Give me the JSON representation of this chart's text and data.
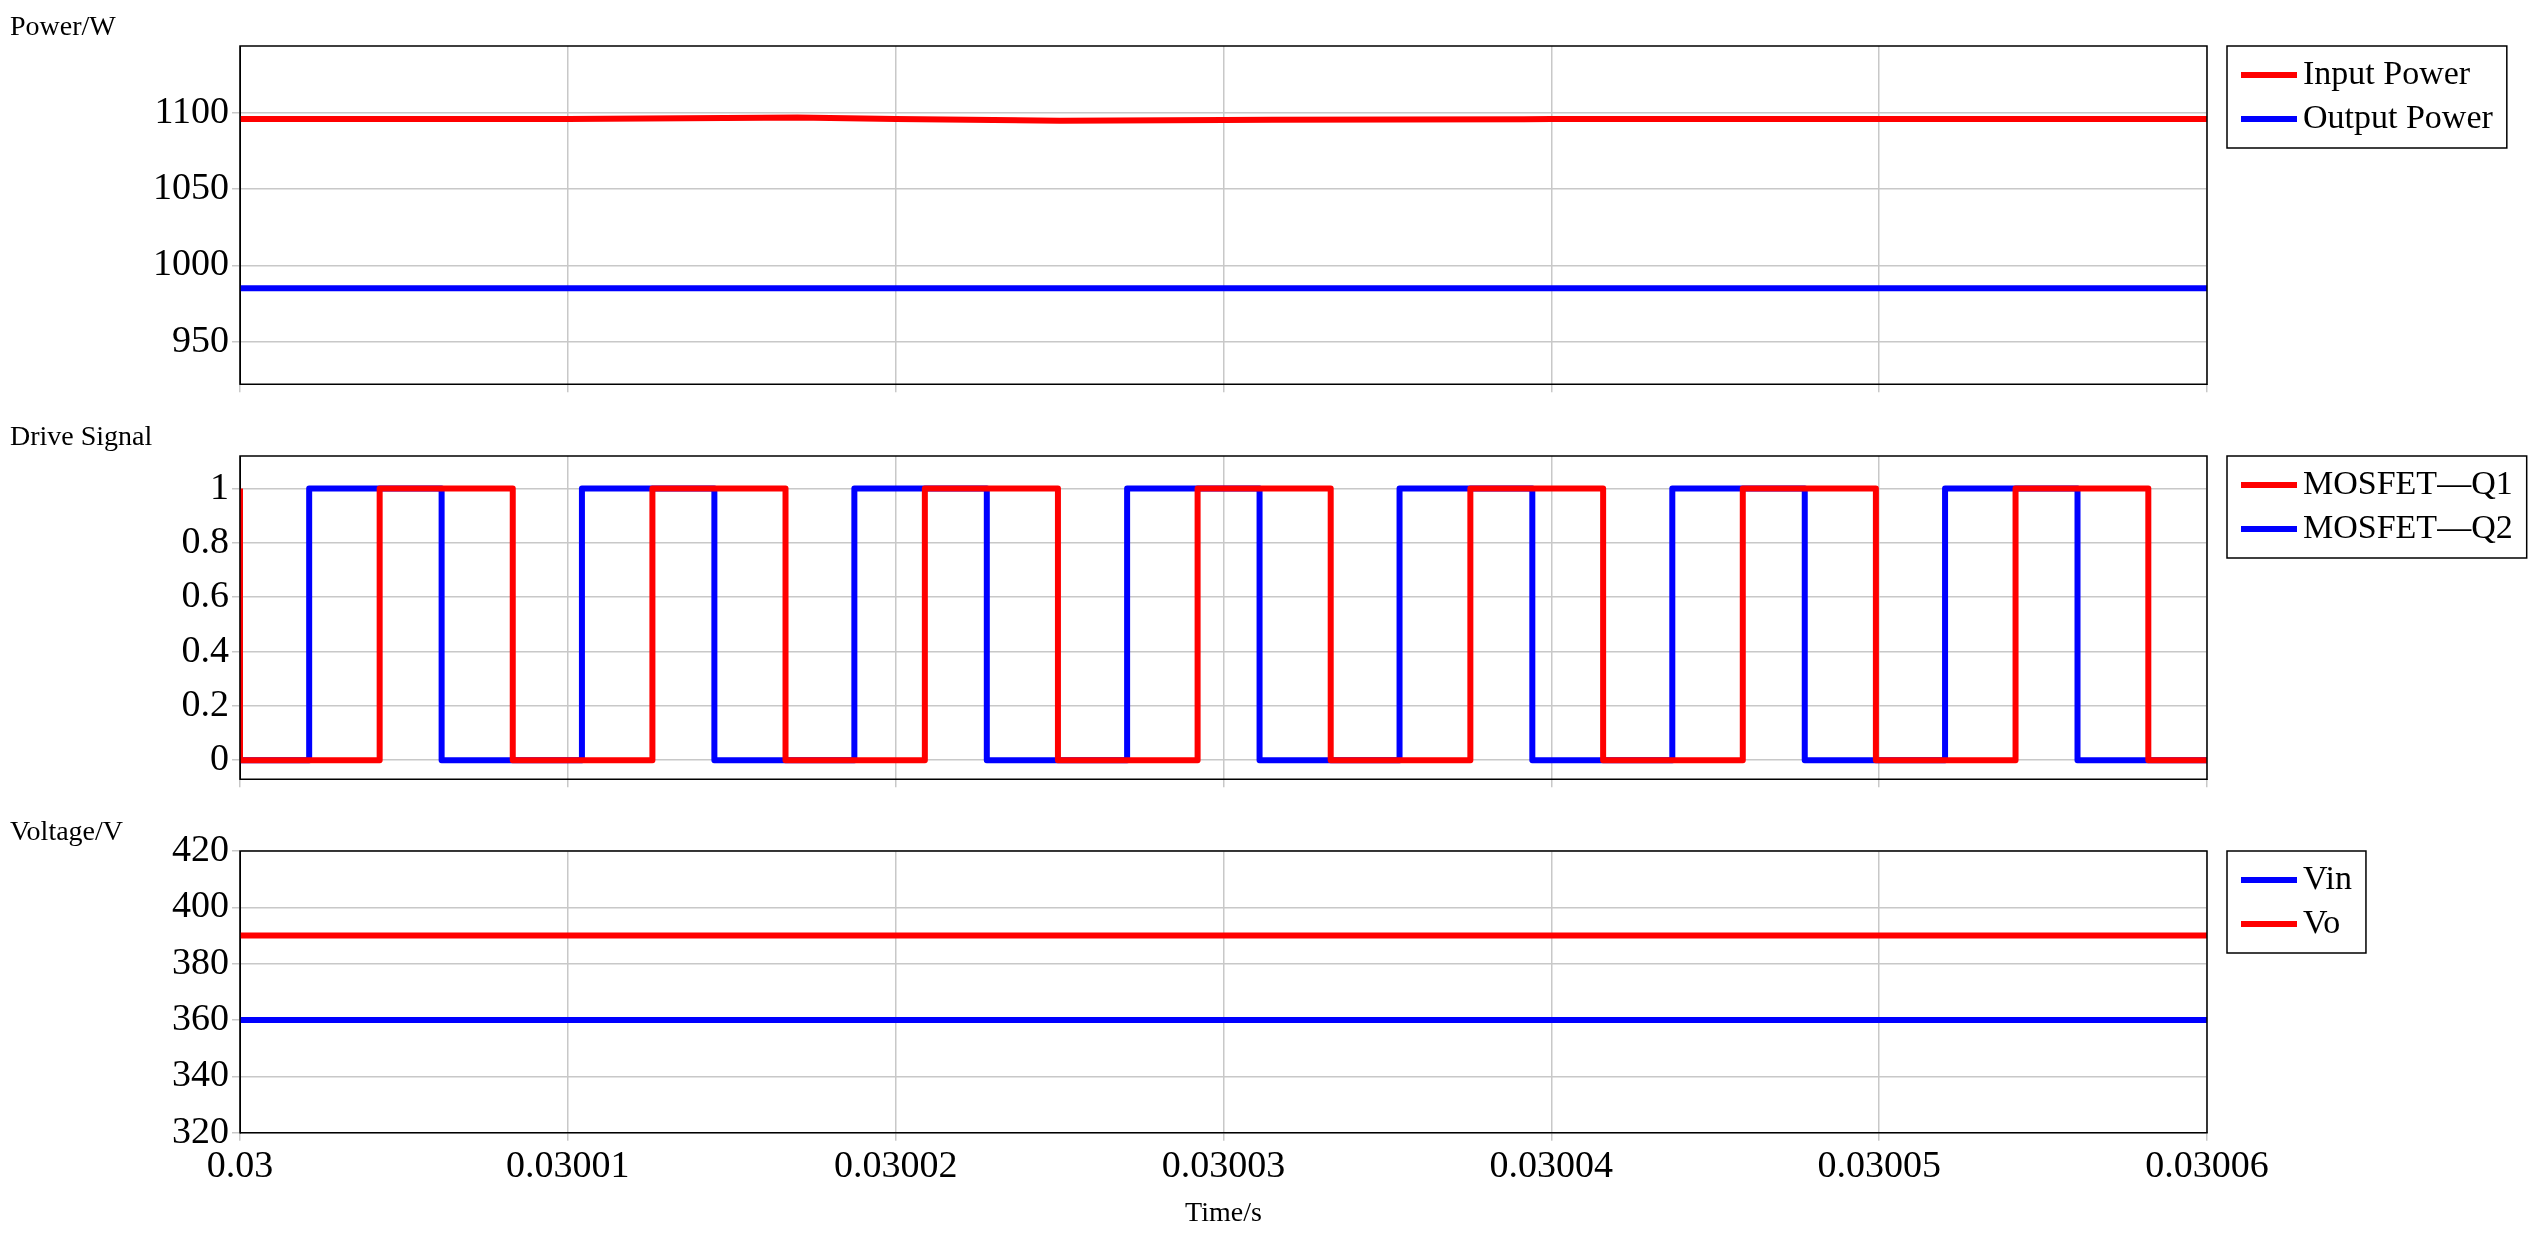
{
  "chart_data": [
    {
      "type": "line",
      "ylabel": "Power/W",
      "xlim": [
        0.03,
        0.03006
      ],
      "xticks": [
        0.03,
        0.03001,
        0.03002,
        0.03003,
        0.03004,
        0.03005,
        0.03006
      ],
      "ylim": [
        922,
        1144
      ],
      "yticks": [
        950,
        1000,
        1050,
        1100
      ],
      "grid": true,
      "legend": "right",
      "tick_labels": "y",
      "series": [
        {
          "name": "Input Power",
          "color": "#ff0000",
          "x": [
            0.03,
            0.03001,
            0.030017,
            0.03002,
            0.030025,
            0.03003,
            0.03004,
            0.03005,
            0.03006
          ],
          "values": [
            1096,
            1096,
            1097,
            1096,
            1095,
            1095.5,
            1096,
            1096,
            1096
          ]
        },
        {
          "name": "Output Power",
          "color": "#0000ff",
          "x": [
            0.03,
            0.03006
          ],
          "values": [
            985,
            985
          ]
        }
      ]
    },
    {
      "type": "step",
      "ylabel": "Drive Signal",
      "xlim": [
        0.03,
        0.03006
      ],
      "xticks": [
        0.03,
        0.03001,
        0.03002,
        0.03003,
        0.03004,
        0.03005,
        0.03006
      ],
      "ylim": [
        -0.07,
        1.12
      ],
      "yticks": [
        0,
        0.2,
        0.4,
        0.6,
        0.8,
        1
      ],
      "grid": true,
      "legend": "right",
      "tick_labels": "y",
      "series": [
        {
          "name": "MOSFET—Q1",
          "color": "#ff0000",
          "x": [
            0.03,
            0.03,
            0.03000426,
            0.03000832,
            0.03001258,
            0.03001664,
            0.03002089,
            0.03002495,
            0.03002921,
            0.03003327,
            0.03003753,
            0.03004158,
            0.03004584,
            0.0300499,
            0.03005416,
            0.03005821,
            0.03006
          ],
          "values": [
            1,
            0,
            1,
            0,
            1,
            0,
            1,
            0,
            1,
            0,
            1,
            0,
            1,
            0,
            1,
            0,
            0
          ]
        },
        {
          "name": "MOSFET—Q2",
          "color": "#0000ff",
          "x": [
            0.03,
            0.03000211,
            0.03000615,
            0.03001043,
            0.03001447,
            0.03001874,
            0.03002278,
            0.03002706,
            0.0300311,
            0.03003537,
            0.03003942,
            0.03004369,
            0.03004773,
            0.03005201,
            0.03005605,
            0.03006
          ],
          "values": [
            0,
            1,
            0,
            1,
            0,
            1,
            0,
            1,
            0,
            1,
            0,
            1,
            0,
            1,
            0,
            0
          ]
        }
      ]
    },
    {
      "type": "line",
      "ylabel": "Voltage/V",
      "xlabel": "Time/s",
      "xlim": [
        0.03,
        0.03006
      ],
      "xticks": [
        0.03,
        0.03001,
        0.03002,
        0.03003,
        0.03004,
        0.03005,
        0.03006
      ],
      "ylim": [
        320,
        420
      ],
      "yticks": [
        320,
        340,
        360,
        380,
        400,
        420
      ],
      "grid": true,
      "legend": "right",
      "series": [
        {
          "name": "Vin",
          "color": "#0000ff",
          "x": [
            0.03,
            0.03006
          ],
          "values": [
            360,
            360
          ]
        },
        {
          "name": "Vo",
          "color": "#ff0000",
          "x": [
            0.03,
            0.03006
          ],
          "values": [
            390,
            390
          ]
        }
      ]
    }
  ]
}
